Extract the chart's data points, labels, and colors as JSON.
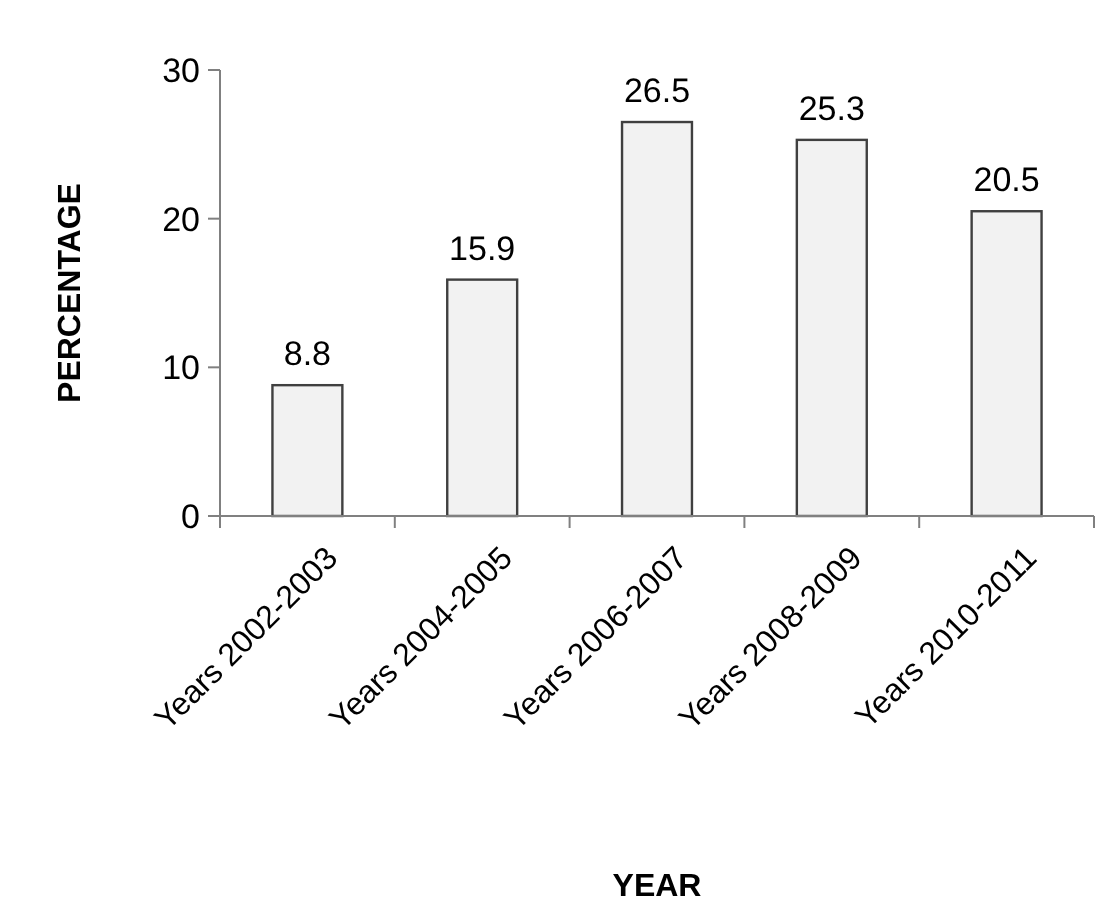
{
  "chart_data": {
    "type": "bar",
    "xlabel": "YEAR",
    "ylabel": "PERCENTAGE",
    "categories": [
      "Years 2002-2003",
      "Years 2004-2005",
      "Years 2006-2007",
      "Years 2008-2009",
      "Years 2010-2011"
    ],
    "values": [
      8.8,
      15.9,
      26.5,
      25.3,
      20.5
    ],
    "color": "#f2f2f2",
    "ylim": [
      0,
      30
    ],
    "yticks": [
      0,
      10,
      20,
      30
    ],
    "data_labels": true
  }
}
